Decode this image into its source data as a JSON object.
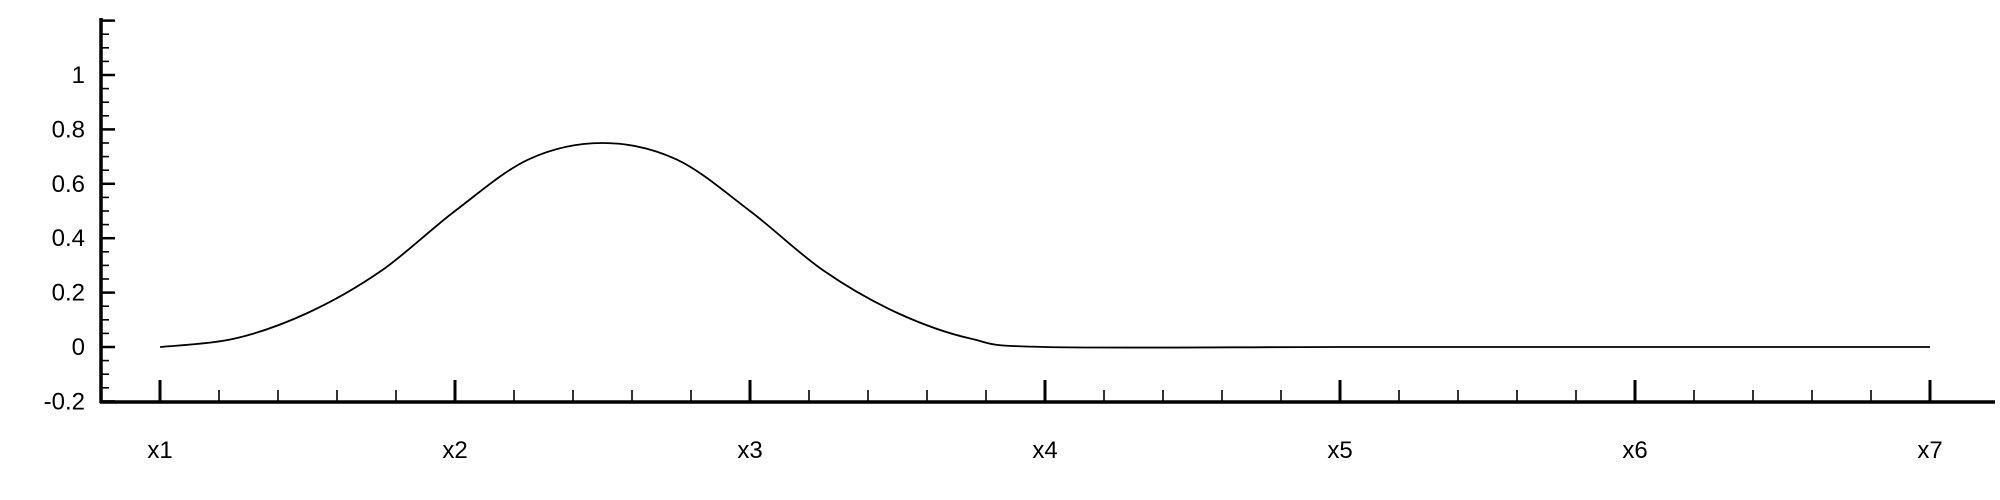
{
  "chart_data": {
    "type": "line",
    "title": "",
    "xlabel": "",
    "ylabel": "",
    "xlim": [
      1,
      7
    ],
    "ylim": [
      -0.2,
      1.2
    ],
    "x_ticks": [
      {
        "value": 1,
        "label": "x1"
      },
      {
        "value": 2,
        "label": "x2"
      },
      {
        "value": 3,
        "label": "x3"
      },
      {
        "value": 4,
        "label": "x4"
      },
      {
        "value": 5,
        "label": "x5"
      },
      {
        "value": 6,
        "label": "x6"
      },
      {
        "value": 7,
        "label": "x7"
      }
    ],
    "y_ticks": [
      {
        "value": -0.2,
        "label": "-0.2"
      },
      {
        "value": 0,
        "label": "0"
      },
      {
        "value": 0.2,
        "label": "0.2"
      },
      {
        "value": 0.4,
        "label": "0.4"
      },
      {
        "value": 0.6,
        "label": "0.6"
      },
      {
        "value": 0.8,
        "label": "0.8"
      },
      {
        "value": 1,
        "label": "1"
      }
    ],
    "grid": false,
    "legend": "none",
    "series": [
      {
        "x": [
          1,
          1.25,
          1.5,
          1.75,
          2,
          2.25,
          2.5,
          2.75,
          3,
          3.25,
          3.5,
          3.75,
          4,
          5,
          6,
          7
        ],
        "y": [
          0,
          0.03,
          0.125,
          0.28,
          0.5,
          0.69,
          0.75,
          0.69,
          0.5,
          0.28,
          0.125,
          0.03,
          0,
          0,
          0,
          0
        ]
      }
    ]
  }
}
